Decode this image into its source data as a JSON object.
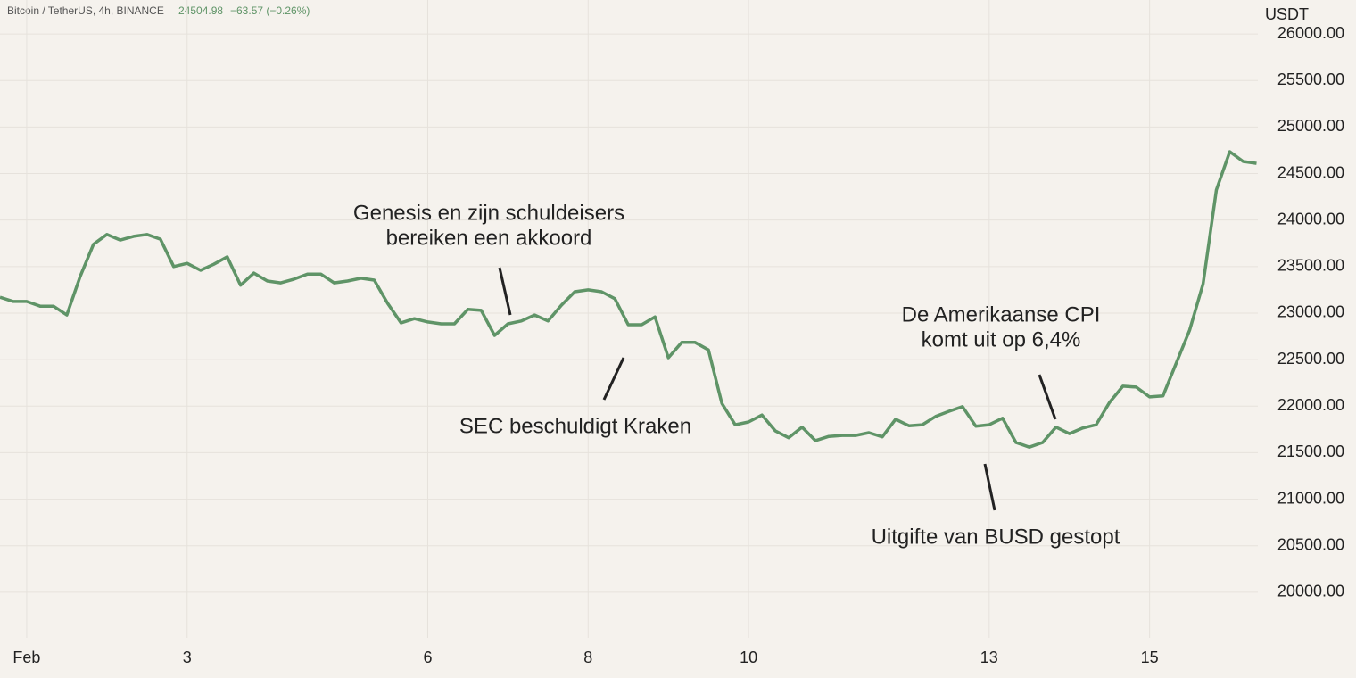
{
  "chart_data": {
    "type": "line",
    "title": "Bitcoin / TetherUS, 4h, BINANCE",
    "last_price": "24504.98",
    "change": "−63.57 (−0.26%)",
    "y_label": "USDT",
    "color": "#5f9467",
    "grid": true,
    "x": [
      0.667,
      0.833,
      1,
      1.167,
      1.333,
      1.5,
      1.667,
      1.833,
      2,
      2.167,
      2.333,
      2.5,
      2.667,
      2.833,
      3,
      3.167,
      3.333,
      3.5,
      3.667,
      3.833,
      4,
      4.167,
      4.333,
      4.5,
      4.667,
      4.833,
      5,
      5.167,
      5.333,
      5.5,
      5.667,
      5.833,
      6,
      6.167,
      6.333,
      6.5,
      6.667,
      6.833,
      7,
      7.167,
      7.333,
      7.5,
      7.667,
      7.833,
      8,
      8.167,
      8.333,
      8.5,
      8.667,
      8.833,
      9,
      9.167,
      9.333,
      9.5,
      9.667,
      9.833,
      10,
      10.167,
      10.333,
      10.5,
      10.667,
      10.833,
      11,
      11.167,
      11.333,
      11.5,
      11.667,
      11.833,
      12,
      12.167,
      12.333,
      12.5,
      12.667,
      12.833,
      13,
      13.167,
      13.333,
      13.5,
      13.667,
      13.833,
      14,
      14.167,
      14.333,
      14.5,
      14.667,
      14.833,
      15,
      15.167,
      15.333,
      15.5,
      15.667,
      15.833,
      16,
      16.167,
      16.333
    ],
    "values": [
      23170,
      23125,
      23125,
      23075,
      23075,
      22980,
      23395,
      23740,
      23845,
      23785,
      23825,
      23845,
      23795,
      23500,
      23535,
      23460,
      23525,
      23605,
      23300,
      23430,
      23345,
      23325,
      23365,
      23420,
      23420,
      23325,
      23345,
      23375,
      23355,
      23105,
      22895,
      22940,
      22905,
      22885,
      22885,
      23040,
      23030,
      22760,
      22885,
      22915,
      22980,
      22915,
      23085,
      23230,
      23250,
      23230,
      23155,
      22875,
      22875,
      22960,
      22520,
      22685,
      22685,
      22605,
      22030,
      21800,
      21830,
      21905,
      21735,
      21660,
      21775,
      21630,
      21675,
      21685,
      21685,
      21715,
      21670,
      21860,
      21790,
      21800,
      21890,
      21945,
      21995,
      21785,
      21800,
      21870,
      21610,
      21560,
      21610,
      21775,
      21705,
      21765,
      21800,
      22040,
      22215,
      22205,
      22100,
      22110,
      22465,
      22820,
      23315,
      24325,
      24735,
      24630,
      24610
    ],
    "xlim": [
      0.667,
      16.35
    ],
    "xticks": [
      {
        "value": 1,
        "label": "Feb"
      },
      3,
      6,
      8,
      10,
      13,
      15
    ],
    "ylim": [
      19510,
      26365
    ],
    "yticks": [
      {
        "value": 20000,
        "label": "20000.00"
      },
      {
        "value": 20500,
        "label": "20500.00"
      },
      {
        "value": 21000,
        "label": "21000.00"
      },
      {
        "value": 21500,
        "label": "21500.00"
      },
      {
        "value": 22000,
        "label": "22000.00"
      },
      {
        "value": 22500,
        "label": "22500.00"
      },
      {
        "value": 23000,
        "label": "23000.00"
      },
      {
        "value": 23500,
        "label": "23500.00"
      },
      {
        "value": 24000,
        "label": "24000.00"
      },
      {
        "value": 24500,
        "label": "24500.00"
      },
      {
        "value": 25000,
        "label": "25000.00"
      },
      {
        "value": 25500,
        "label": "25500.00"
      },
      {
        "value": 26000,
        "label": "26000.00"
      }
    ],
    "annotations": [
      {
        "lines": [
          "Genesis en zijn schuldeisers",
          "bereiken een akkoord"
        ]
      },
      {
        "lines": [
          "SEC beschuldigt Kraken"
        ]
      },
      {
        "lines": [
          "De Amerikaanse CPI",
          "komt uit op 6,4%"
        ]
      },
      {
        "lines": [
          "Uitgifte van BUSD gestopt"
        ]
      }
    ]
  }
}
